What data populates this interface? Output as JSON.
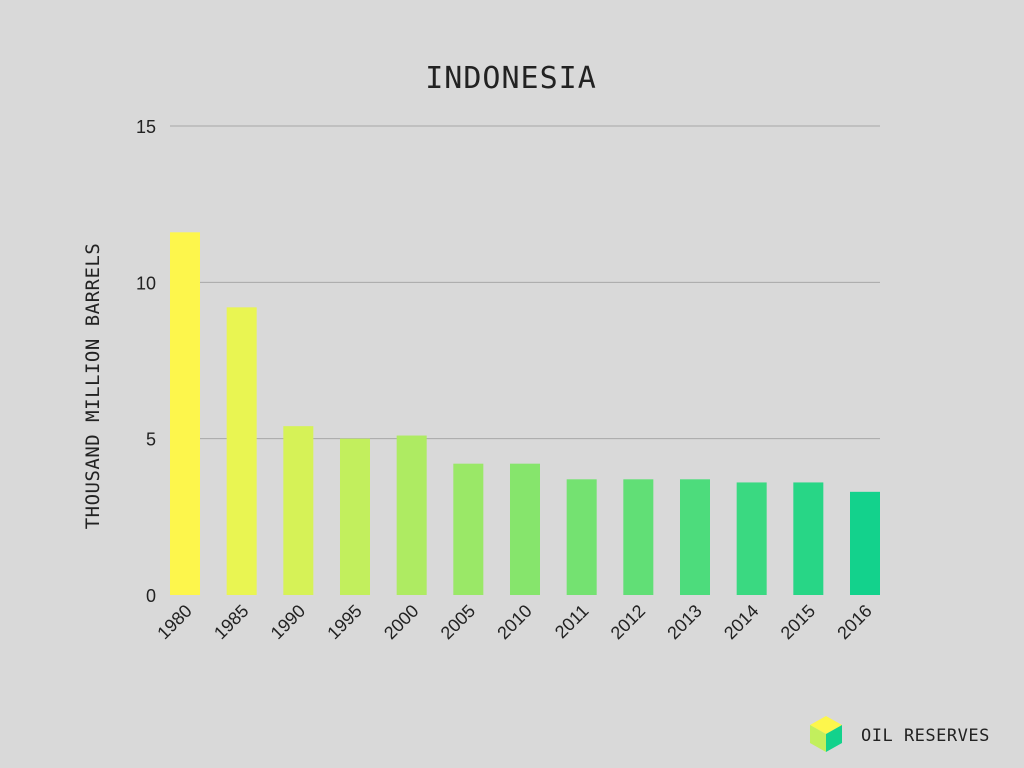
{
  "chart_data": {
    "type": "bar",
    "title": "INDONESIA",
    "xlabel": "",
    "ylabel": "THOUSAND MILLION BARRELS",
    "ylim": [
      0,
      15
    ],
    "yticks": [
      "0",
      "5",
      "10",
      "15"
    ],
    "grid": true,
    "categories": [
      "1980",
      "1985",
      "1990",
      "1995",
      "2000",
      "2005",
      "2010",
      "2011",
      "2012",
      "2013",
      "2014",
      "2015",
      "2016"
    ],
    "values": [
      11.6,
      9.2,
      5.4,
      5.0,
      5.1,
      4.2,
      4.2,
      3.7,
      3.7,
      3.7,
      3.6,
      3.6,
      3.3
    ],
    "colors": [
      "#fdf64c",
      "#e9f552",
      "#d6f257",
      "#c2ef5d",
      "#aeeb62",
      "#9ae867",
      "#86e56c",
      "#74e271",
      "#61df76",
      "#4ddc7c",
      "#3ad981",
      "#28d686",
      "#13d28c"
    ]
  },
  "badge": {
    "label": "OIL RESERVES",
    "icon": "cube-icon",
    "icon_colors": {
      "top": "#fdf64c",
      "left": "#c2ef5d",
      "right": "#13d28c"
    }
  }
}
